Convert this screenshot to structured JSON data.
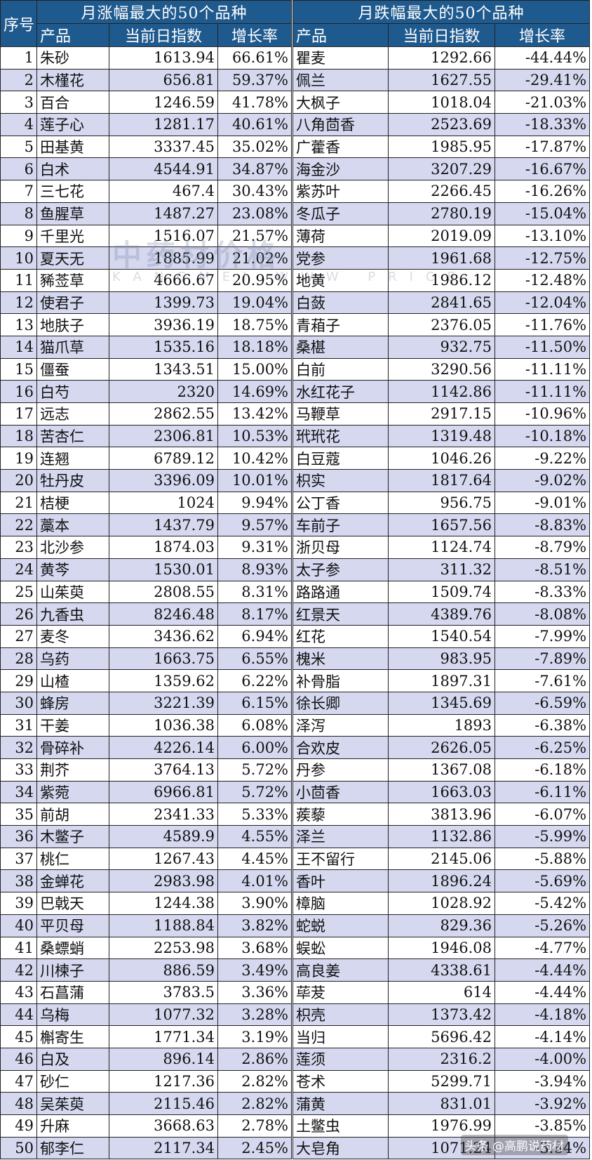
{
  "header": {
    "index_label": "序号",
    "rise_title": "月涨幅最大的50个品种",
    "fall_title": "月跌幅最大的50个品种",
    "col_product": "产品",
    "col_index": "当前日指数",
    "col_growth": "增长率"
  },
  "watermark": {
    "main": "中药材价格",
    "sub": "KANGMEI WWW PRICE"
  },
  "credit": "头条 @高鹏说药材",
  "rows": [
    {
      "no": "1",
      "rise_name": "朱砂",
      "rise_index": "1613.94",
      "rise_growth": "66.61%",
      "fall_name": "瞿麦",
      "fall_index": "1292.66",
      "fall_growth": "-44.44%"
    },
    {
      "no": "2",
      "rise_name": "木槿花",
      "rise_index": "656.81",
      "rise_growth": "59.37%",
      "fall_name": "佩兰",
      "fall_index": "1627.55",
      "fall_growth": "-29.41%"
    },
    {
      "no": "3",
      "rise_name": "百合",
      "rise_index": "1246.59",
      "rise_growth": "41.78%",
      "fall_name": "大枫子",
      "fall_index": "1018.04",
      "fall_growth": "-21.03%"
    },
    {
      "no": "4",
      "rise_name": "莲子心",
      "rise_index": "1281.17",
      "rise_growth": "40.61%",
      "fall_name": "八角茴香",
      "fall_index": "2523.69",
      "fall_growth": "-18.33%"
    },
    {
      "no": "5",
      "rise_name": "田基黄",
      "rise_index": "3337.45",
      "rise_growth": "35.02%",
      "fall_name": "广藿香",
      "fall_index": "1985.95",
      "fall_growth": "-17.87%"
    },
    {
      "no": "6",
      "rise_name": "白术",
      "rise_index": "4544.91",
      "rise_growth": "34.87%",
      "fall_name": "海金沙",
      "fall_index": "3207.29",
      "fall_growth": "-16.67%"
    },
    {
      "no": "7",
      "rise_name": "三七花",
      "rise_index": "467.4",
      "rise_growth": "30.43%",
      "fall_name": "紫苏叶",
      "fall_index": "2266.45",
      "fall_growth": "-16.26%"
    },
    {
      "no": "8",
      "rise_name": "鱼腥草",
      "rise_index": "1487.27",
      "rise_growth": "23.08%",
      "fall_name": "冬瓜子",
      "fall_index": "2780.19",
      "fall_growth": "-15.04%"
    },
    {
      "no": "9",
      "rise_name": "千里光",
      "rise_index": "1516.07",
      "rise_growth": "21.57%",
      "fall_name": "薄荷",
      "fall_index": "2019.09",
      "fall_growth": "-13.10%"
    },
    {
      "no": "10",
      "rise_name": "夏天无",
      "rise_index": "1885.99",
      "rise_growth": "21.02%",
      "fall_name": "党参",
      "fall_index": "1961.68",
      "fall_growth": "-12.75%"
    },
    {
      "no": "11",
      "rise_name": "豨莶草",
      "rise_index": "4666.67",
      "rise_growth": "20.95%",
      "fall_name": "地黄",
      "fall_index": "1986.12",
      "fall_growth": "-12.48%"
    },
    {
      "no": "12",
      "rise_name": "使君子",
      "rise_index": "1399.73",
      "rise_growth": "19.04%",
      "fall_name": "白蔹",
      "fall_index": "2841.65",
      "fall_growth": "-12.04%"
    },
    {
      "no": "13",
      "rise_name": "地肤子",
      "rise_index": "3936.19",
      "rise_growth": "18.75%",
      "fall_name": "青葙子",
      "fall_index": "2376.05",
      "fall_growth": "-11.76%"
    },
    {
      "no": "14",
      "rise_name": "猫爪草",
      "rise_index": "1535.16",
      "rise_growth": "18.18%",
      "fall_name": "桑椹",
      "fall_index": "932.75",
      "fall_growth": "-11.50%"
    },
    {
      "no": "15",
      "rise_name": "僵蚕",
      "rise_index": "1343.51",
      "rise_growth": "15.00%",
      "fall_name": "白前",
      "fall_index": "3290.56",
      "fall_growth": "-11.11%"
    },
    {
      "no": "16",
      "rise_name": "白芍",
      "rise_index": "2320",
      "rise_growth": "14.69%",
      "fall_name": "水红花子",
      "fall_index": "1142.86",
      "fall_growth": "-11.11%"
    },
    {
      "no": "17",
      "rise_name": "远志",
      "rise_index": "2862.55",
      "rise_growth": "13.42%",
      "fall_name": "马鞭草",
      "fall_index": "2917.15",
      "fall_growth": "-10.96%"
    },
    {
      "no": "18",
      "rise_name": "苦杏仁",
      "rise_index": "2306.81",
      "rise_growth": "10.53%",
      "fall_name": "玳玳花",
      "fall_index": "1319.48",
      "fall_growth": "-10.18%"
    },
    {
      "no": "19",
      "rise_name": "连翘",
      "rise_index": "6789.12",
      "rise_growth": "10.42%",
      "fall_name": "白豆蔻",
      "fall_index": "1046.26",
      "fall_growth": "-9.22%"
    },
    {
      "no": "20",
      "rise_name": "牡丹皮",
      "rise_index": "3396.09",
      "rise_growth": "10.01%",
      "fall_name": "枳实",
      "fall_index": "1817.64",
      "fall_growth": "-9.02%"
    },
    {
      "no": "21",
      "rise_name": "桔梗",
      "rise_index": "1024",
      "rise_growth": "9.94%",
      "fall_name": "公丁香",
      "fall_index": "956.75",
      "fall_growth": "-9.01%"
    },
    {
      "no": "22",
      "rise_name": "藁本",
      "rise_index": "1437.79",
      "rise_growth": "9.57%",
      "fall_name": "车前子",
      "fall_index": "1657.56",
      "fall_growth": "-8.83%"
    },
    {
      "no": "23",
      "rise_name": "北沙参",
      "rise_index": "1874.03",
      "rise_growth": "9.31%",
      "fall_name": "浙贝母",
      "fall_index": "1124.74",
      "fall_growth": "-8.79%"
    },
    {
      "no": "24",
      "rise_name": "黄芩",
      "rise_index": "1530.01",
      "rise_growth": "8.93%",
      "fall_name": "太子参",
      "fall_index": "311.32",
      "fall_growth": "-8.51%"
    },
    {
      "no": "25",
      "rise_name": "山茱萸",
      "rise_index": "2808.55",
      "rise_growth": "8.31%",
      "fall_name": "路路通",
      "fall_index": "1509.74",
      "fall_growth": "-8.33%"
    },
    {
      "no": "26",
      "rise_name": "九香虫",
      "rise_index": "8246.48",
      "rise_growth": "8.17%",
      "fall_name": "红景天",
      "fall_index": "4389.76",
      "fall_growth": "-8.08%"
    },
    {
      "no": "27",
      "rise_name": "麦冬",
      "rise_index": "3436.62",
      "rise_growth": "6.94%",
      "fall_name": "红花",
      "fall_index": "1540.54",
      "fall_growth": "-7.99%"
    },
    {
      "no": "28",
      "rise_name": "乌药",
      "rise_index": "1663.75",
      "rise_growth": "6.55%",
      "fall_name": "槐米",
      "fall_index": "983.95",
      "fall_growth": "-7.89%"
    },
    {
      "no": "29",
      "rise_name": "山楂",
      "rise_index": "1359.62",
      "rise_growth": "6.22%",
      "fall_name": "补骨脂",
      "fall_index": "1897.31",
      "fall_growth": "-7.61%"
    },
    {
      "no": "30",
      "rise_name": "蜂房",
      "rise_index": "3221.39",
      "rise_growth": "6.15%",
      "fall_name": "徐长卿",
      "fall_index": "1345.69",
      "fall_growth": "-6.59%"
    },
    {
      "no": "31",
      "rise_name": "干姜",
      "rise_index": "1036.38",
      "rise_growth": "6.08%",
      "fall_name": "泽泻",
      "fall_index": "1893",
      "fall_growth": "-6.38%"
    },
    {
      "no": "32",
      "rise_name": "骨碎补",
      "rise_index": "4226.14",
      "rise_growth": "6.00%",
      "fall_name": "合欢皮",
      "fall_index": "2626.05",
      "fall_growth": "-6.25%"
    },
    {
      "no": "33",
      "rise_name": "荆芥",
      "rise_index": "3764.13",
      "rise_growth": "5.72%",
      "fall_name": "丹参",
      "fall_index": "1367.08",
      "fall_growth": "-6.18%"
    },
    {
      "no": "34",
      "rise_name": "紫菀",
      "rise_index": "6966.81",
      "rise_growth": "5.72%",
      "fall_name": "小茴香",
      "fall_index": "1663.03",
      "fall_growth": "-6.11%"
    },
    {
      "no": "35",
      "rise_name": "前胡",
      "rise_index": "2341.33",
      "rise_growth": "5.33%",
      "fall_name": "蒺藜",
      "fall_index": "3813.96",
      "fall_growth": "-6.07%"
    },
    {
      "no": "36",
      "rise_name": "木鳖子",
      "rise_index": "4589.9",
      "rise_growth": "4.55%",
      "fall_name": "泽兰",
      "fall_index": "1132.86",
      "fall_growth": "-5.99%"
    },
    {
      "no": "37",
      "rise_name": "桃仁",
      "rise_index": "1267.43",
      "rise_growth": "4.45%",
      "fall_name": "王不留行",
      "fall_index": "2145.06",
      "fall_growth": "-5.88%"
    },
    {
      "no": "38",
      "rise_name": "金蝉花",
      "rise_index": "2983.98",
      "rise_growth": "4.01%",
      "fall_name": "香叶",
      "fall_index": "1896.24",
      "fall_growth": "-5.69%"
    },
    {
      "no": "39",
      "rise_name": "巴戟天",
      "rise_index": "1244.38",
      "rise_growth": "3.90%",
      "fall_name": "樟脑",
      "fall_index": "1028.92",
      "fall_growth": "-5.42%"
    },
    {
      "no": "40",
      "rise_name": "平贝母",
      "rise_index": "1188.84",
      "rise_growth": "3.82%",
      "fall_name": "蛇蜕",
      "fall_index": "829.36",
      "fall_growth": "-5.26%"
    },
    {
      "no": "41",
      "rise_name": "桑螵蛸",
      "rise_index": "2253.98",
      "rise_growth": "3.68%",
      "fall_name": "蜈蚣",
      "fall_index": "1946.08",
      "fall_growth": "-4.77%"
    },
    {
      "no": "42",
      "rise_name": "川楝子",
      "rise_index": "886.59",
      "rise_growth": "3.49%",
      "fall_name": "高良姜",
      "fall_index": "4338.61",
      "fall_growth": "-4.44%"
    },
    {
      "no": "43",
      "rise_name": "石菖蒲",
      "rise_index": "3783.5",
      "rise_growth": "3.36%",
      "fall_name": "荜茇",
      "fall_index": "614",
      "fall_growth": "-4.44%"
    },
    {
      "no": "44",
      "rise_name": "乌梅",
      "rise_index": "1077.32",
      "rise_growth": "3.28%",
      "fall_name": "枳壳",
      "fall_index": "1373.42",
      "fall_growth": "-4.18%"
    },
    {
      "no": "45",
      "rise_name": "槲寄生",
      "rise_index": "1771.34",
      "rise_growth": "3.19%",
      "fall_name": "当归",
      "fall_index": "5696.42",
      "fall_growth": "-4.14%"
    },
    {
      "no": "46",
      "rise_name": "白及",
      "rise_index": "896.14",
      "rise_growth": "2.86%",
      "fall_name": "莲须",
      "fall_index": "2316.2",
      "fall_growth": "-4.00%"
    },
    {
      "no": "47",
      "rise_name": "砂仁",
      "rise_index": "1217.36",
      "rise_growth": "2.82%",
      "fall_name": "苍术",
      "fall_index": "5299.71",
      "fall_growth": "-3.94%"
    },
    {
      "no": "48",
      "rise_name": "吴茱萸",
      "rise_index": "2115.46",
      "rise_growth": "2.82%",
      "fall_name": "蒲黄",
      "fall_index": "831.01",
      "fall_growth": "-3.92%"
    },
    {
      "no": "49",
      "rise_name": "升麻",
      "rise_index": "3668.63",
      "rise_growth": "2.78%",
      "fall_name": "土鳖虫",
      "fall_index": "1976.99",
      "fall_growth": "-3.85%"
    },
    {
      "no": "50",
      "rise_name": "郁李仁",
      "rise_index": "2117.34",
      "rise_growth": "2.45%",
      "fall_name": "大皂角",
      "fall_index": "1071.24",
      "fall_growth": "-3.84%"
    }
  ]
}
